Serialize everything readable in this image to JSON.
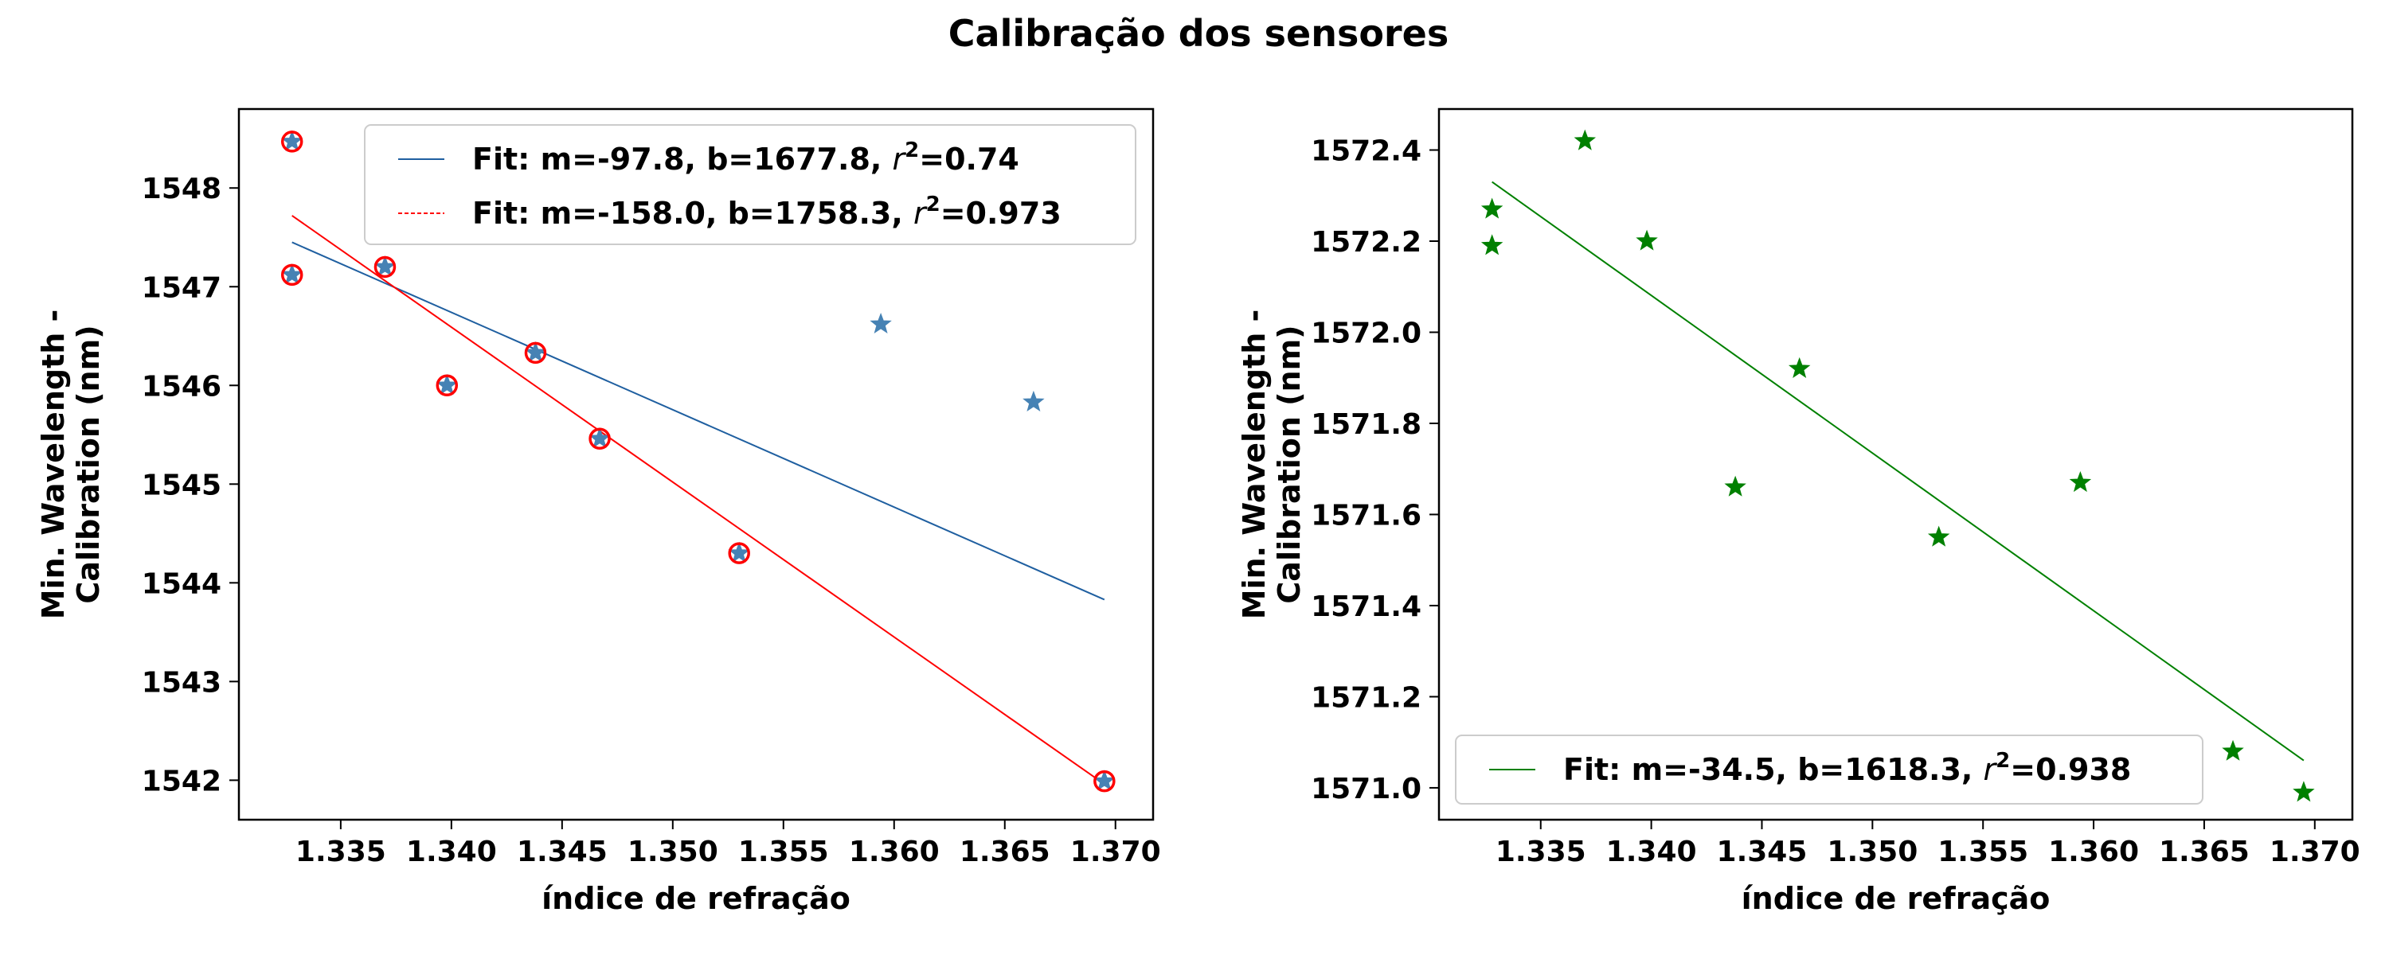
{
  "figure": {
    "title": "Calibração dos sensores"
  },
  "chart_data": [
    {
      "type": "scatter",
      "xlabel": "índice de refração",
      "ylabel_lines": [
        "Min. Wavelength -",
        "Calibration (nm)"
      ],
      "xlim": [
        1.3304,
        1.3717
      ],
      "ylim": [
        1541.6,
        1548.8
      ],
      "xticks": [
        "1.335",
        "1.340",
        "1.345",
        "1.350",
        "1.355",
        "1.360",
        "1.365",
        "1.370"
      ],
      "yticks": [
        "1542",
        "1543",
        "1544",
        "1545",
        "1546",
        "1547",
        "1548"
      ],
      "legend_position": "upper right",
      "points": {
        "marker": "star",
        "color": "#4682b4",
        "x": [
          1.3328,
          1.3328,
          1.337,
          1.3398,
          1.3438,
          1.3467,
          1.353,
          1.3594,
          1.3663,
          1.3695
        ],
        "y": [
          1548.47,
          1547.12,
          1547.2,
          1546.0,
          1546.33,
          1545.46,
          1544.3,
          1546.62,
          1545.83,
          1541.99
        ]
      },
      "highlighted": {
        "marker": "open-circle",
        "color": "#ff0000",
        "x": [
          1.3328,
          1.3328,
          1.337,
          1.3398,
          1.3438,
          1.3467,
          1.353,
          1.3695
        ],
        "y": [
          1548.47,
          1547.12,
          1547.2,
          1546.0,
          1546.33,
          1545.46,
          1544.3,
          1541.99
        ]
      },
      "fits": [
        {
          "label_prefix": "Fit: m=-97.8, b=1677.8, ",
          "label_suffix": "=0.74",
          "color": "#1f5fa0",
          "dash": "solid",
          "x": [
            1.3328,
            1.3695
          ],
          "y": [
            1547.45,
            1543.83
          ]
        },
        {
          "label_prefix": "Fit: m=-158.0, b=1758.3, ",
          "label_suffix": "=0.973",
          "color": "#ff0000",
          "dash": "dashed",
          "x": [
            1.3328,
            1.3695
          ],
          "y": [
            1547.72,
            1541.96
          ]
        }
      ]
    },
    {
      "type": "scatter",
      "xlabel": "índice de refração",
      "ylabel_lines": [
        "Min. Wavelength -",
        "Calibration (nm)"
      ],
      "xlim": [
        1.3304,
        1.3717
      ],
      "ylim": [
        1570.93,
        1572.49
      ],
      "xticks": [
        "1.335",
        "1.340",
        "1.345",
        "1.350",
        "1.355",
        "1.360",
        "1.365",
        "1.370"
      ],
      "yticks": [
        "1571.0",
        "1571.2",
        "1571.4",
        "1571.6",
        "1571.8",
        "1572.0",
        "1572.2",
        "1572.4"
      ],
      "legend_position": "lower left",
      "points": {
        "marker": "star",
        "color": "#008000",
        "x": [
          1.3328,
          1.3328,
          1.337,
          1.3398,
          1.3438,
          1.3467,
          1.353,
          1.3594,
          1.3663,
          1.3695
        ],
        "y": [
          1572.27,
          1572.19,
          1572.42,
          1572.2,
          1571.66,
          1571.92,
          1571.55,
          1571.67,
          1571.08,
          1570.99
        ]
      },
      "fits": [
        {
          "label_prefix": "Fit: m=-34.5, b=1618.3, ",
          "label_suffix": "=0.938",
          "color": "#008000",
          "dash": "solid",
          "x": [
            1.3328,
            1.3695
          ],
          "y": [
            1572.33,
            1571.06
          ]
        }
      ]
    }
  ]
}
